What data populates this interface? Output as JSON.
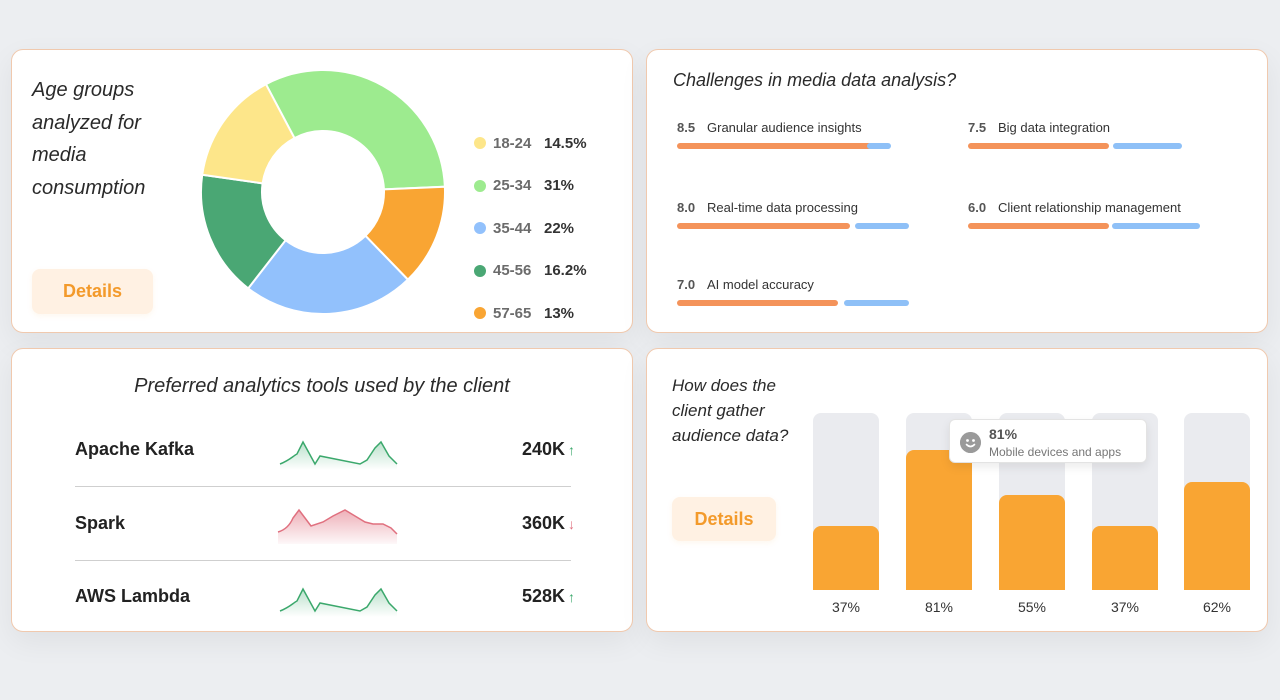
{
  "age_card": {
    "title": "Age groups analyzed for media consumption",
    "details_label": "Details",
    "segments": [
      {
        "range": "18-24",
        "pct_label": "14.5%",
        "value": 14.5,
        "color": "#fde68a"
      },
      {
        "range": "25-34",
        "pct_label": "31%",
        "value": 31,
        "color": "#9deb8f"
      },
      {
        "range": "35-44",
        "pct_label": "22%",
        "value": 22,
        "color": "#92c1fc"
      },
      {
        "range": "45-56",
        "pct_label": "16.2%",
        "value": 16.2,
        "color": "#4aa774"
      },
      {
        "range": "57-65",
        "pct_label": "13%",
        "value": 13,
        "color": "#f9a533"
      }
    ]
  },
  "challenges_card": {
    "title": "Challenges in media data analysis?",
    "items": [
      {
        "score": "8.5",
        "label": "Granular audience insights"
      },
      {
        "score": "7.5",
        "label": "Big data integration"
      },
      {
        "score": "8.0",
        "label": "Real-time data processing"
      },
      {
        "score": "6.0",
        "label": "Client relationship management"
      },
      {
        "score": "7.0",
        "label": "AI model accuracy"
      }
    ]
  },
  "tools_card": {
    "title": "Preferred analytics tools used by the client",
    "tools": [
      {
        "name": "Apache Kafka",
        "value": "240K",
        "arrow": "↑",
        "trend": "up",
        "color": "#3ba86c"
      },
      {
        "name": "Spark",
        "value": "360K",
        "arrow": "↓",
        "trend": "down",
        "color": "#e0707f"
      },
      {
        "name": "AWS Lambda",
        "value": "528K",
        "arrow": "↑",
        "trend": "up",
        "color": "#3ba86c"
      }
    ]
  },
  "gather_card": {
    "title": "How does the client gather audience data?",
    "details_label": "Details",
    "bars": [
      {
        "value": 37,
        "label": "37%"
      },
      {
        "value": 81,
        "label": "81%"
      },
      {
        "value": 55,
        "label": "55%"
      },
      {
        "value": 37,
        "label": "37%"
      },
      {
        "value": 62,
        "label": "62%"
      }
    ],
    "tooltip": {
      "pct": "81%",
      "label": "Mobile devices and apps",
      "icon": "smile-icon"
    }
  },
  "colors": {
    "accent": "#f9a533",
    "border": "#f0c9ae",
    "orange_bar": "#f4935a",
    "blue_bar": "#8ec0f7"
  }
}
